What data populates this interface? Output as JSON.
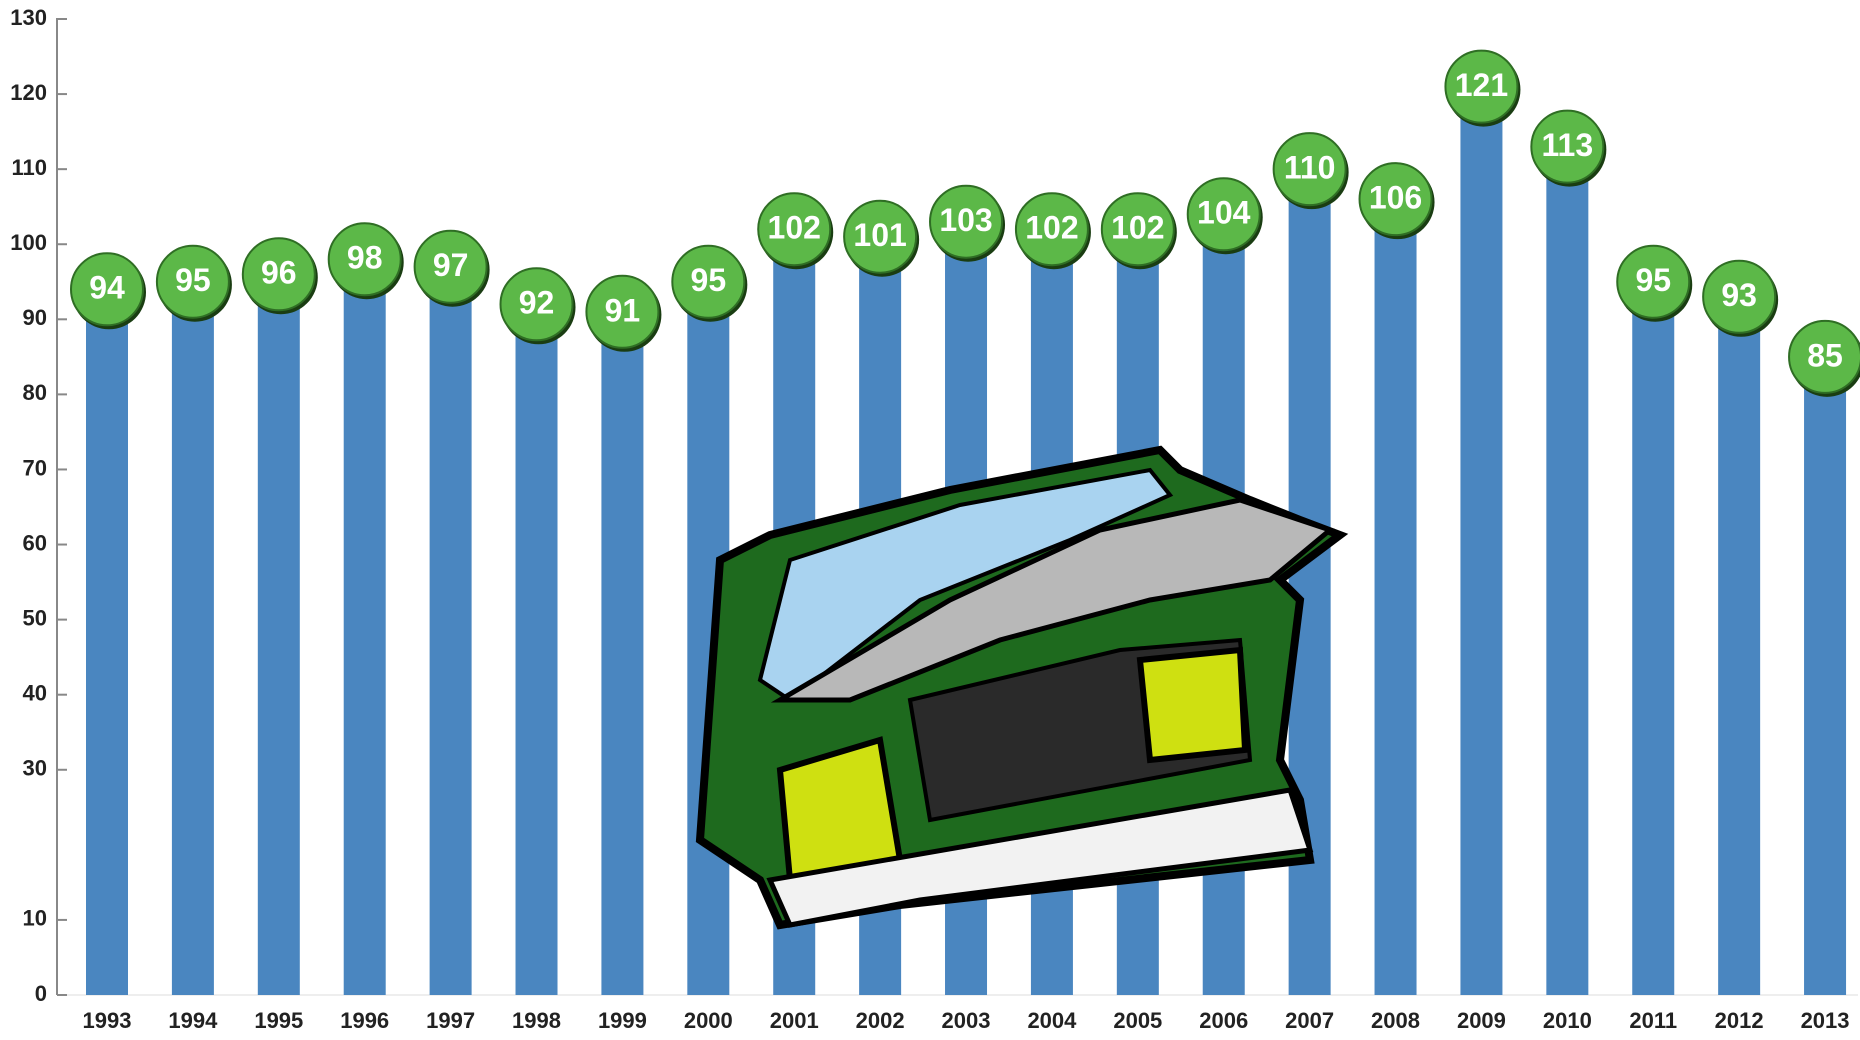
{
  "chart_data": {
    "type": "bar",
    "categories": [
      "1993",
      "1994",
      "1995",
      "1996",
      "1997",
      "1998",
      "1999",
      "2000",
      "2001",
      "2002",
      "2003",
      "2004",
      "2005",
      "2006",
      "2007",
      "2008",
      "2009",
      "2010",
      "2011",
      "2012",
      "2013"
    ],
    "values": [
      94,
      95,
      96,
      98,
      97,
      92,
      91,
      95,
      102,
      101,
      103,
      102,
      102,
      104,
      110,
      106,
      121,
      113,
      95,
      93,
      85
    ],
    "color": "#4a86c0",
    "label_color": "#5cb848",
    "ylim": [
      0,
      130
    ],
    "yticks": [
      0,
      10,
      30,
      40,
      50,
      60,
      70,
      80,
      90,
      100,
      110,
      120,
      130
    ]
  }
}
